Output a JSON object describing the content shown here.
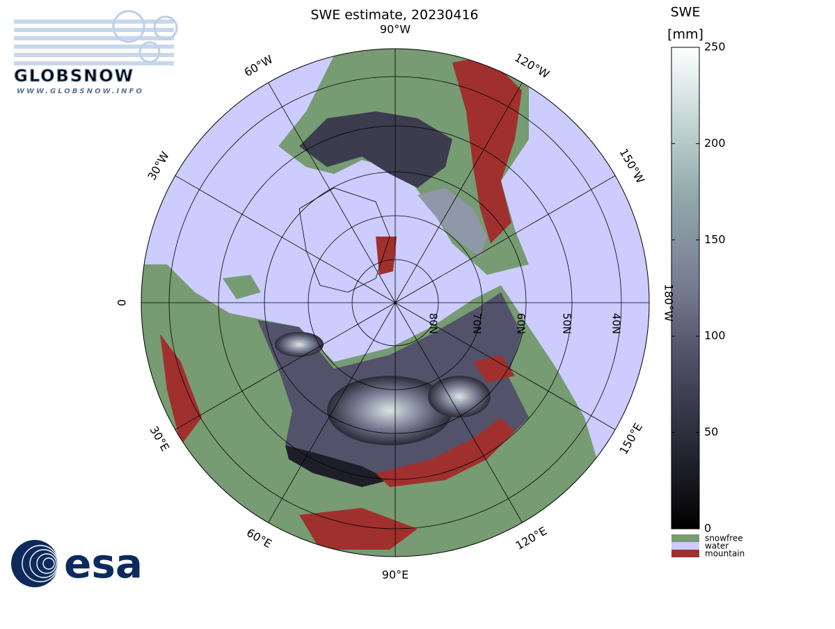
{
  "title": "SWE estimate, 20230416",
  "logos": {
    "globsnow": "GLOBSNOW",
    "url": "WWW.GLOBSNOW.INFO",
    "esa": "esa"
  },
  "map": {
    "lon_labels": [
      "90°W",
      "120°W",
      "150°W",
      "180°W",
      "150°E",
      "120°E",
      "90°E",
      "60°E",
      "30°E",
      "0",
      "30°W",
      "60°W"
    ],
    "lat_labels": [
      "80N",
      "70N",
      "60N",
      "50N",
      "40N"
    ]
  },
  "colorbar": {
    "label": "SWE",
    "unit": "[mm]",
    "lim": [
      0,
      250
    ],
    "ticks": [
      0,
      50,
      100,
      150,
      200,
      250
    ]
  },
  "legend": [
    {
      "name": "snowfree",
      "color": "#779b72"
    },
    {
      "name": "water",
      "color": "#ccccff"
    },
    {
      "name": "mountain",
      "color": "#a0302e"
    }
  ]
}
